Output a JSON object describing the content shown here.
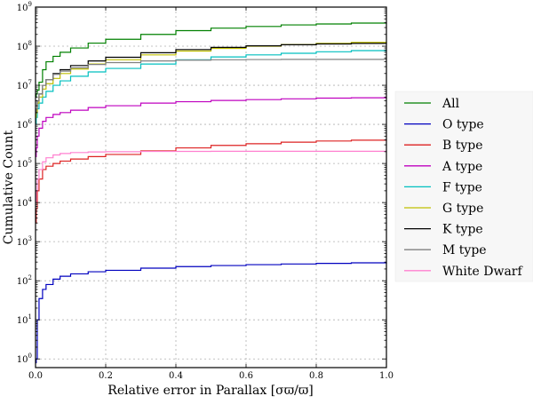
{
  "chart_data": {
    "type": "line",
    "title": "",
    "xlabel": "Relative error in Parallax [σϖ/ϖ]",
    "ylabel": "Cumulative Count",
    "xlim": [
      0.0,
      1.0
    ],
    "ylim": [
      0.6,
      1000000000
    ],
    "yscale": "log",
    "grid": true,
    "legend_position": "right",
    "x_ticks": [
      {
        "value": 0.0,
        "label": "0.0"
      },
      {
        "value": 0.2,
        "label": "0.2"
      },
      {
        "value": 0.4,
        "label": "0.4"
      },
      {
        "value": 0.6,
        "label": "0.6"
      },
      {
        "value": 0.8,
        "label": "0.8"
      },
      {
        "value": 1.0,
        "label": "1.0"
      }
    ],
    "y_ticks": [
      {
        "value": 1,
        "base": "10",
        "exp": "0"
      },
      {
        "value": 10,
        "base": "10",
        "exp": "1"
      },
      {
        "value": 100,
        "base": "10",
        "exp": "2"
      },
      {
        "value": 1000,
        "base": "10",
        "exp": "3"
      },
      {
        "value": 10000,
        "base": "10",
        "exp": "4"
      },
      {
        "value": 100000,
        "base": "10",
        "exp": "5"
      },
      {
        "value": 1000000,
        "base": "10",
        "exp": "6"
      },
      {
        "value": 10000000,
        "base": "10",
        "exp": "7"
      },
      {
        "value": 100000000,
        "base": "10",
        "exp": "8"
      },
      {
        "value": 1000000000,
        "base": "10",
        "exp": "9"
      }
    ],
    "x": [
      0.0,
      0.002,
      0.005,
      0.01,
      0.02,
      0.03,
      0.05,
      0.07,
      0.1,
      0.15,
      0.2,
      0.3,
      0.4,
      0.5,
      0.6,
      0.7,
      0.8,
      0.9,
      1.0
    ],
    "series": [
      {
        "name": "All",
        "color": "#008000",
        "values": [
          5000000,
          6000000,
          7500000,
          12000000,
          25000000,
          40000000,
          55000000,
          70000000,
          90000000,
          120000000,
          150000000,
          200000000,
          250000000,
          290000000,
          320000000,
          350000000,
          370000000,
          390000000,
          400000000
        ]
      },
      {
        "name": "O type",
        "color": "#0000bf",
        "values": [
          0.8,
          1,
          10,
          35,
          60,
          80,
          110,
          130,
          150,
          170,
          185,
          210,
          230,
          245,
          258,
          268,
          278,
          287,
          295
        ]
      },
      {
        "name": "B type",
        "color": "#dd2222",
        "values": [
          3000,
          7000,
          20000,
          40000,
          70000,
          85000,
          100000,
          115000,
          130000,
          150000,
          170000,
          210000,
          250000,
          290000,
          320000,
          350000,
          375000,
          395000,
          410000
        ]
      },
      {
        "name": "A type",
        "color": "#bf00bf",
        "values": [
          150000,
          250000,
          500000,
          800000,
          1200000,
          1500000,
          1800000,
          2000000,
          2300000,
          2700000,
          3000000,
          3500000,
          3800000,
          4100000,
          4300000,
          4500000,
          4700000,
          4800000,
          4900000
        ]
      },
      {
        "name": "F type",
        "color": "#00bfbf",
        "values": [
          1000000,
          1500000,
          2500000,
          3500000,
          5000000,
          7000000,
          10000000,
          13000000,
          17000000,
          22000000,
          27000000,
          35000000,
          45000000,
          53000000,
          60000000,
          66000000,
          72000000,
          77000000,
          80000000
        ]
      },
      {
        "name": "G type",
        "color": "#bfbf00",
        "values": [
          1500000,
          2000000,
          3500000,
          5000000,
          8000000,
          11000000,
          15000000,
          20000000,
          26000000,
          35000000,
          45000000,
          60000000,
          75000000,
          88000000,
          100000000,
          110000000,
          118000000,
          125000000,
          130000000
        ]
      },
      {
        "name": "K type",
        "color": "#000000",
        "values": [
          2000000,
          2500000,
          4000000,
          6000000,
          10000000,
          14000000,
          20000000,
          25000000,
          32000000,
          42000000,
          52000000,
          68000000,
          82000000,
          93000000,
          102000000,
          109000000,
          114000000,
          118000000,
          120000000
        ]
      },
      {
        "name": "M type",
        "color": "#808080",
        "values": [
          2000000,
          2500000,
          4000000,
          6000000,
          10000000,
          14000000,
          19000000,
          23000000,
          28000000,
          34000000,
          38000000,
          42000000,
          44000000,
          45000000,
          45500000,
          46000000,
          46000000,
          46000000,
          46000000
        ]
      },
      {
        "name": "White Dwarf",
        "color": "#ff80d0",
        "values": [
          10000,
          20000,
          40000,
          70000,
          110000,
          140000,
          165000,
          180000,
          190000,
          197000,
          200000,
          203000,
          204000,
          205000,
          205000,
          205000,
          205000,
          205000,
          205000
        ]
      }
    ]
  }
}
